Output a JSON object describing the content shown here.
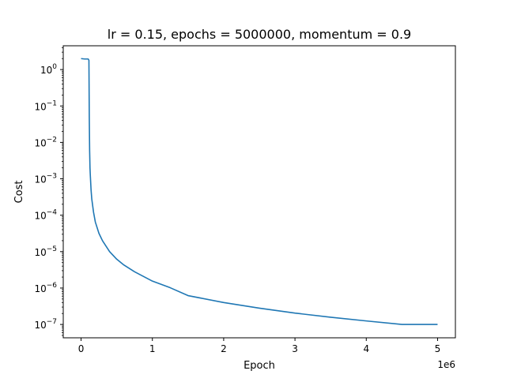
{
  "chart_data": {
    "type": "line",
    "title": "lr = 0.15, epochs = 5000000, momentum = 0.9",
    "xlabel": "Epoch",
    "ylabel": "Cost",
    "x_offset_label": "1e6",
    "xscale": "linear",
    "yscale": "log",
    "xlim": [
      -250000,
      5250000
    ],
    "ylim": [
      4.3e-08,
      4.5
    ],
    "x_ticks": [
      0,
      1000000,
      2000000,
      3000000,
      4000000,
      5000000
    ],
    "x_tick_labels": [
      "0",
      "1",
      "2",
      "3",
      "4",
      "5"
    ],
    "y_ticks": [
      1e-07,
      1e-06,
      1e-05,
      0.0001,
      0.001,
      0.01,
      0.1,
      1
    ],
    "y_tick_labels": [
      {
        "base": "10",
        "exp": "−7"
      },
      {
        "base": "10",
        "exp": "−6"
      },
      {
        "base": "10",
        "exp": "−5"
      },
      {
        "base": "10",
        "exp": "−4"
      },
      {
        "base": "10",
        "exp": "−3"
      },
      {
        "base": "10",
        "exp": "−2"
      },
      {
        "base": "10",
        "exp": "−1"
      },
      {
        "base": "10",
        "exp": "0"
      }
    ],
    "grid": false,
    "legend": false,
    "series": [
      {
        "color": "#1f77b4",
        "x": [
          0,
          50000,
          100000,
          110000,
          115000,
          120000,
          125000,
          130000,
          140000,
          150000,
          175000,
          200000,
          250000,
          300000,
          400000,
          500000,
          600000,
          750000,
          1000000,
          1250000,
          1500000,
          2000000,
          2500000,
          3000000,
          3500000,
          4000000,
          4500000,
          5000000
        ],
        "y": [
          2.0,
          1.95,
          1.95,
          1.8,
          0.05,
          0.006,
          0.002,
          0.0012,
          0.0005,
          0.00028,
          0.00012,
          6.5e-05,
          3.2e-05,
          2e-05,
          1e-05,
          6.2e-06,
          4.3e-06,
          2.8e-06,
          1.55e-06,
          1.02e-06,
          6.2e-07,
          4e-07,
          2.8e-07,
          2.05e-07,
          1.58e-07,
          1.25e-07,
          1e-07,
          1e-07
        ]
      }
    ]
  }
}
